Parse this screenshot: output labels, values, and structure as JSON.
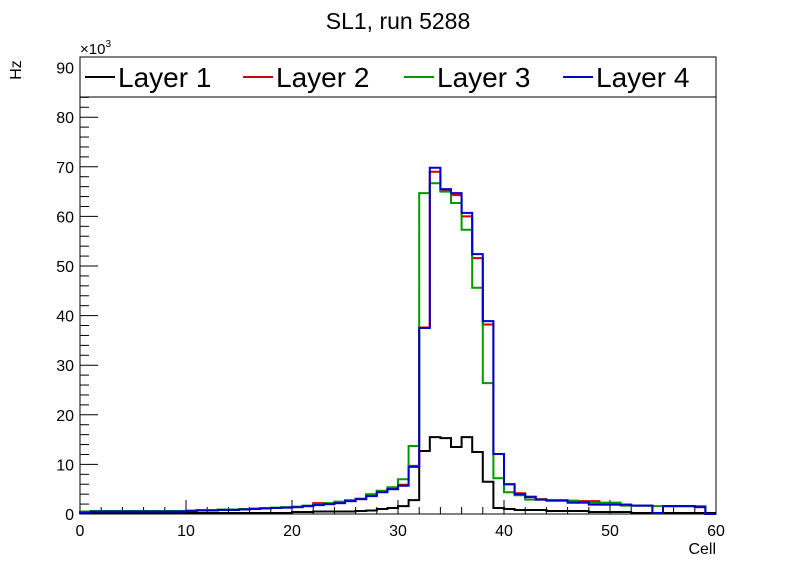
{
  "chart_data": {
    "type": "line",
    "style": "step-histogram",
    "title": "SL1, run 5288",
    "xlabel": "Cell",
    "ylabel": "Hz",
    "y_multiplier": "×10",
    "y_multiplier_exp": "3",
    "xlim": [
      0,
      60
    ],
    "ylim": [
      0,
      92
    ],
    "xticks": [
      "0",
      "10",
      "20",
      "30",
      "40",
      "50",
      "60"
    ],
    "yticks": [
      "0",
      "10",
      "20",
      "30",
      "40",
      "50",
      "60",
      "70",
      "80",
      "90"
    ],
    "legend_placement": "top",
    "series": [
      {
        "name": "Layer 1",
        "color": "#000000",
        "values": [
          0.2,
          0.2,
          0.2,
          0.2,
          0.2,
          0.2,
          0.2,
          0.2,
          0.2,
          0.2,
          0.2,
          0.2,
          0.2,
          0.2,
          0.2,
          0.2,
          0.2,
          0.2,
          0.2,
          0.2,
          0.4,
          0.4,
          0.5,
          0.5,
          0.5,
          0.5,
          0.6,
          0.7,
          1.0,
          1.2,
          1.6,
          2.8,
          12.7,
          15.5,
          15.3,
          13.5,
          15.5,
          12.5,
          6.5,
          1.2,
          1.0,
          0.8,
          0.8,
          0.8,
          0.6,
          0.6,
          0.6,
          0.6,
          0.4,
          0.4,
          0.4,
          0.4,
          0.2,
          0.2,
          0.2,
          0.2,
          0.2,
          0.2,
          0.2,
          0.2
        ]
      },
      {
        "name": "Layer 2",
        "color": "#cc0000",
        "values": [
          0.3,
          0.5,
          0.5,
          0.5,
          0.5,
          0.5,
          0.5,
          0.5,
          0.5,
          0.5,
          0.6,
          0.7,
          0.7,
          0.8,
          0.8,
          0.9,
          1.0,
          1.1,
          1.2,
          1.3,
          1.4,
          1.6,
          2.2,
          2.0,
          2.2,
          2.6,
          3.0,
          4.0,
          4.6,
          5.2,
          5.9,
          9.7,
          37.6,
          69.0,
          65.2,
          64.3,
          60.0,
          51.6,
          38.2,
          12.1,
          6.0,
          4.2,
          3.5,
          3.0,
          2.8,
          2.8,
          2.3,
          2.6,
          2.6,
          1.9,
          1.9,
          1.9,
          1.7,
          1.7,
          0.2,
          1.6,
          1.6,
          1.6,
          1.4,
          0
        ]
      },
      {
        "name": "Layer 3",
        "color": "#009900",
        "values": [
          0.5,
          0.6,
          0.6,
          0.6,
          0.6,
          0.6,
          0.6,
          0.6,
          0.6,
          0.6,
          0.7,
          0.8,
          0.8,
          0.9,
          0.9,
          1.0,
          1.1,
          1.2,
          1.3,
          1.4,
          1.5,
          1.7,
          1.9,
          2.2,
          2.5,
          2.8,
          3.1,
          3.9,
          4.7,
          5.4,
          7.0,
          13.7,
          64.7,
          66.7,
          65.0,
          62.7,
          57.3,
          45.6,
          26.4,
          7.2,
          4.4,
          3.8,
          2.9,
          2.9,
          2.7,
          2.7,
          2.7,
          2.3,
          2.3,
          2.3,
          2.3,
          1.7,
          1.7,
          1.7,
          1.6,
          1.6,
          1.6,
          1.6,
          1.6,
          0
        ]
      },
      {
        "name": "Layer 4",
        "color": "#0000cc",
        "values": [
          0.3,
          0.5,
          0.5,
          0.5,
          0.5,
          0.5,
          0.5,
          0.5,
          0.5,
          0.5,
          0.6,
          0.7,
          0.7,
          0.8,
          0.8,
          0.9,
          1.0,
          1.1,
          1.2,
          1.3,
          1.4,
          1.6,
          1.8,
          2.0,
          2.2,
          2.6,
          3.0,
          3.6,
          4.4,
          5.0,
          5.7,
          9.5,
          37.5,
          69.8,
          65.5,
          64.7,
          60.7,
          52.4,
          38.9,
          12.1,
          6.0,
          4.0,
          3.4,
          2.9,
          2.7,
          2.7,
          2.3,
          2.3,
          1.9,
          1.9,
          1.9,
          1.9,
          1.7,
          1.7,
          0.2,
          1.6,
          1.6,
          1.6,
          1.4,
          0
        ]
      }
    ]
  }
}
